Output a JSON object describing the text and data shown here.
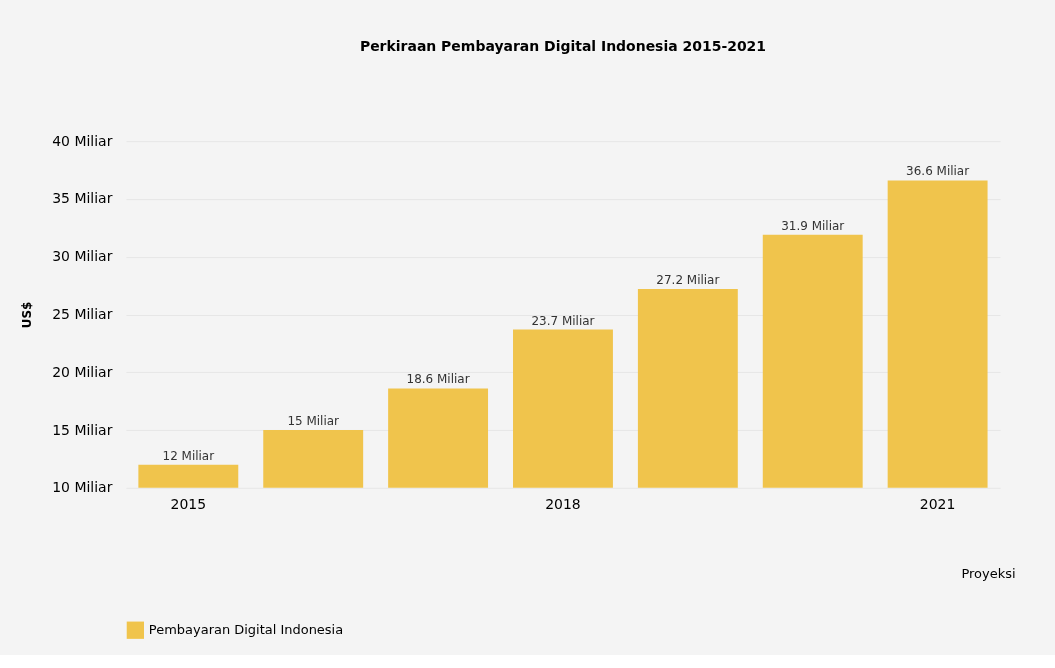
{
  "chart_data": {
    "type": "bar",
    "title": "Perkiraan Pembayaran Digital Indonesia 2015-2021",
    "xlabel": "Proyeksi",
    "ylabel": "US$",
    "categories": [
      "2015",
      null,
      null,
      "2018",
      null,
      null,
      "2021"
    ],
    "series": [
      {
        "name": "Pembayaran Digital Indonesia",
        "color": "#f0c44c",
        "values": [
          12,
          15,
          18.6,
          23.7,
          27.2,
          31.9,
          36.6
        ],
        "value_labels": [
          "12 Miliar",
          "15 Miliar",
          "18.6 Miliar",
          "23.7 Miliar",
          "27.2 Miliar",
          "31.9 Miliar",
          "36.6 Miliar"
        ]
      }
    ],
    "ylim": [
      10,
      40
    ],
    "yticks": [
      {
        "value": 10,
        "label": "10 Miliar"
      },
      {
        "value": 15,
        "label": "15 Miliar"
      },
      {
        "value": 20,
        "label": "20 Miliar"
      },
      {
        "value": 25,
        "label": "25 Miliar"
      },
      {
        "value": 30,
        "label": "30 Miliar"
      },
      {
        "value": 35,
        "label": "35 Miliar"
      },
      {
        "value": 40,
        "label": "40 Miliar"
      }
    ],
    "grid": "y",
    "legend": "bottom left"
  }
}
